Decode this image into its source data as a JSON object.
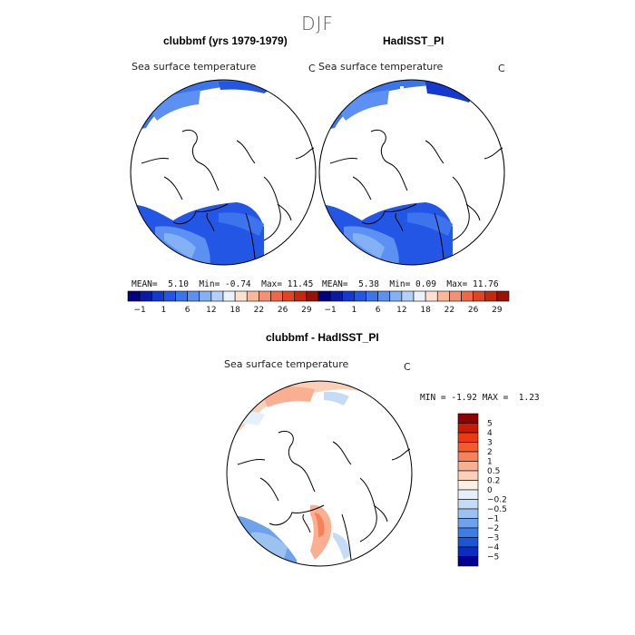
{
  "season": "DJF",
  "panels": [
    {
      "title": "clubbmf (yrs 1979-1979)",
      "variable": "Sea surface temperature",
      "units": "C",
      "stats": {
        "mean_label": "MEAN=",
        "mean": "5.10",
        "min_label": "Min=",
        "min": "-0.74",
        "max_label": "Max=",
        "max": "11.45"
      }
    },
    {
      "title": "HadISST_PI",
      "variable": "Sea surface temperature",
      "units": "C",
      "stats": {
        "mean_label": "MEAN=",
        "mean": "5.38",
        "min_label": "Min=",
        "min": "0.09",
        "max_label": "Max=",
        "max": "11.76"
      }
    }
  ],
  "diff_panel": {
    "title": "clubbmf - HadISST_PI",
    "variable": "Sea surface temperature",
    "units": "C",
    "stats": {
      "min_label": "MIN =",
      "min": "-1.92",
      "max_label": "MAX =",
      "max": "1.23"
    }
  },
  "colorbar_abs": {
    "colors": [
      "#000080",
      "#0a1aa8",
      "#1438d0",
      "#2456e6",
      "#3c74ee",
      "#5c90f2",
      "#84b0f6",
      "#b4d0fa",
      "#eaf2fe",
      "#fde0d0",
      "#f9b89a",
      "#f59070",
      "#ee6848",
      "#e04422",
      "#c42810",
      "#9a1206"
    ],
    "labels": [
      "-1",
      "1",
      "6",
      "12",
      "18",
      "22",
      "26",
      "29"
    ]
  },
  "colorbar_diff": {
    "colors": [
      "#900000",
      "#cc1a00",
      "#ec3a10",
      "#f45a30",
      "#f7825a",
      "#fab090",
      "#fcd0b8",
      "#fdefe6",
      "#e6f0fb",
      "#c4dcf5",
      "#9cc2f0",
      "#6ea2ea",
      "#3e7ee4",
      "#1a54d8",
      "#0a2cc0",
      "#000090"
    ],
    "labels": [
      "5",
      "4",
      "3",
      "2",
      "1",
      "0.5",
      "0.2",
      "0",
      "-0.2",
      "-0.5",
      "-1",
      "-2",
      "-3",
      "-4",
      "-5"
    ]
  }
}
